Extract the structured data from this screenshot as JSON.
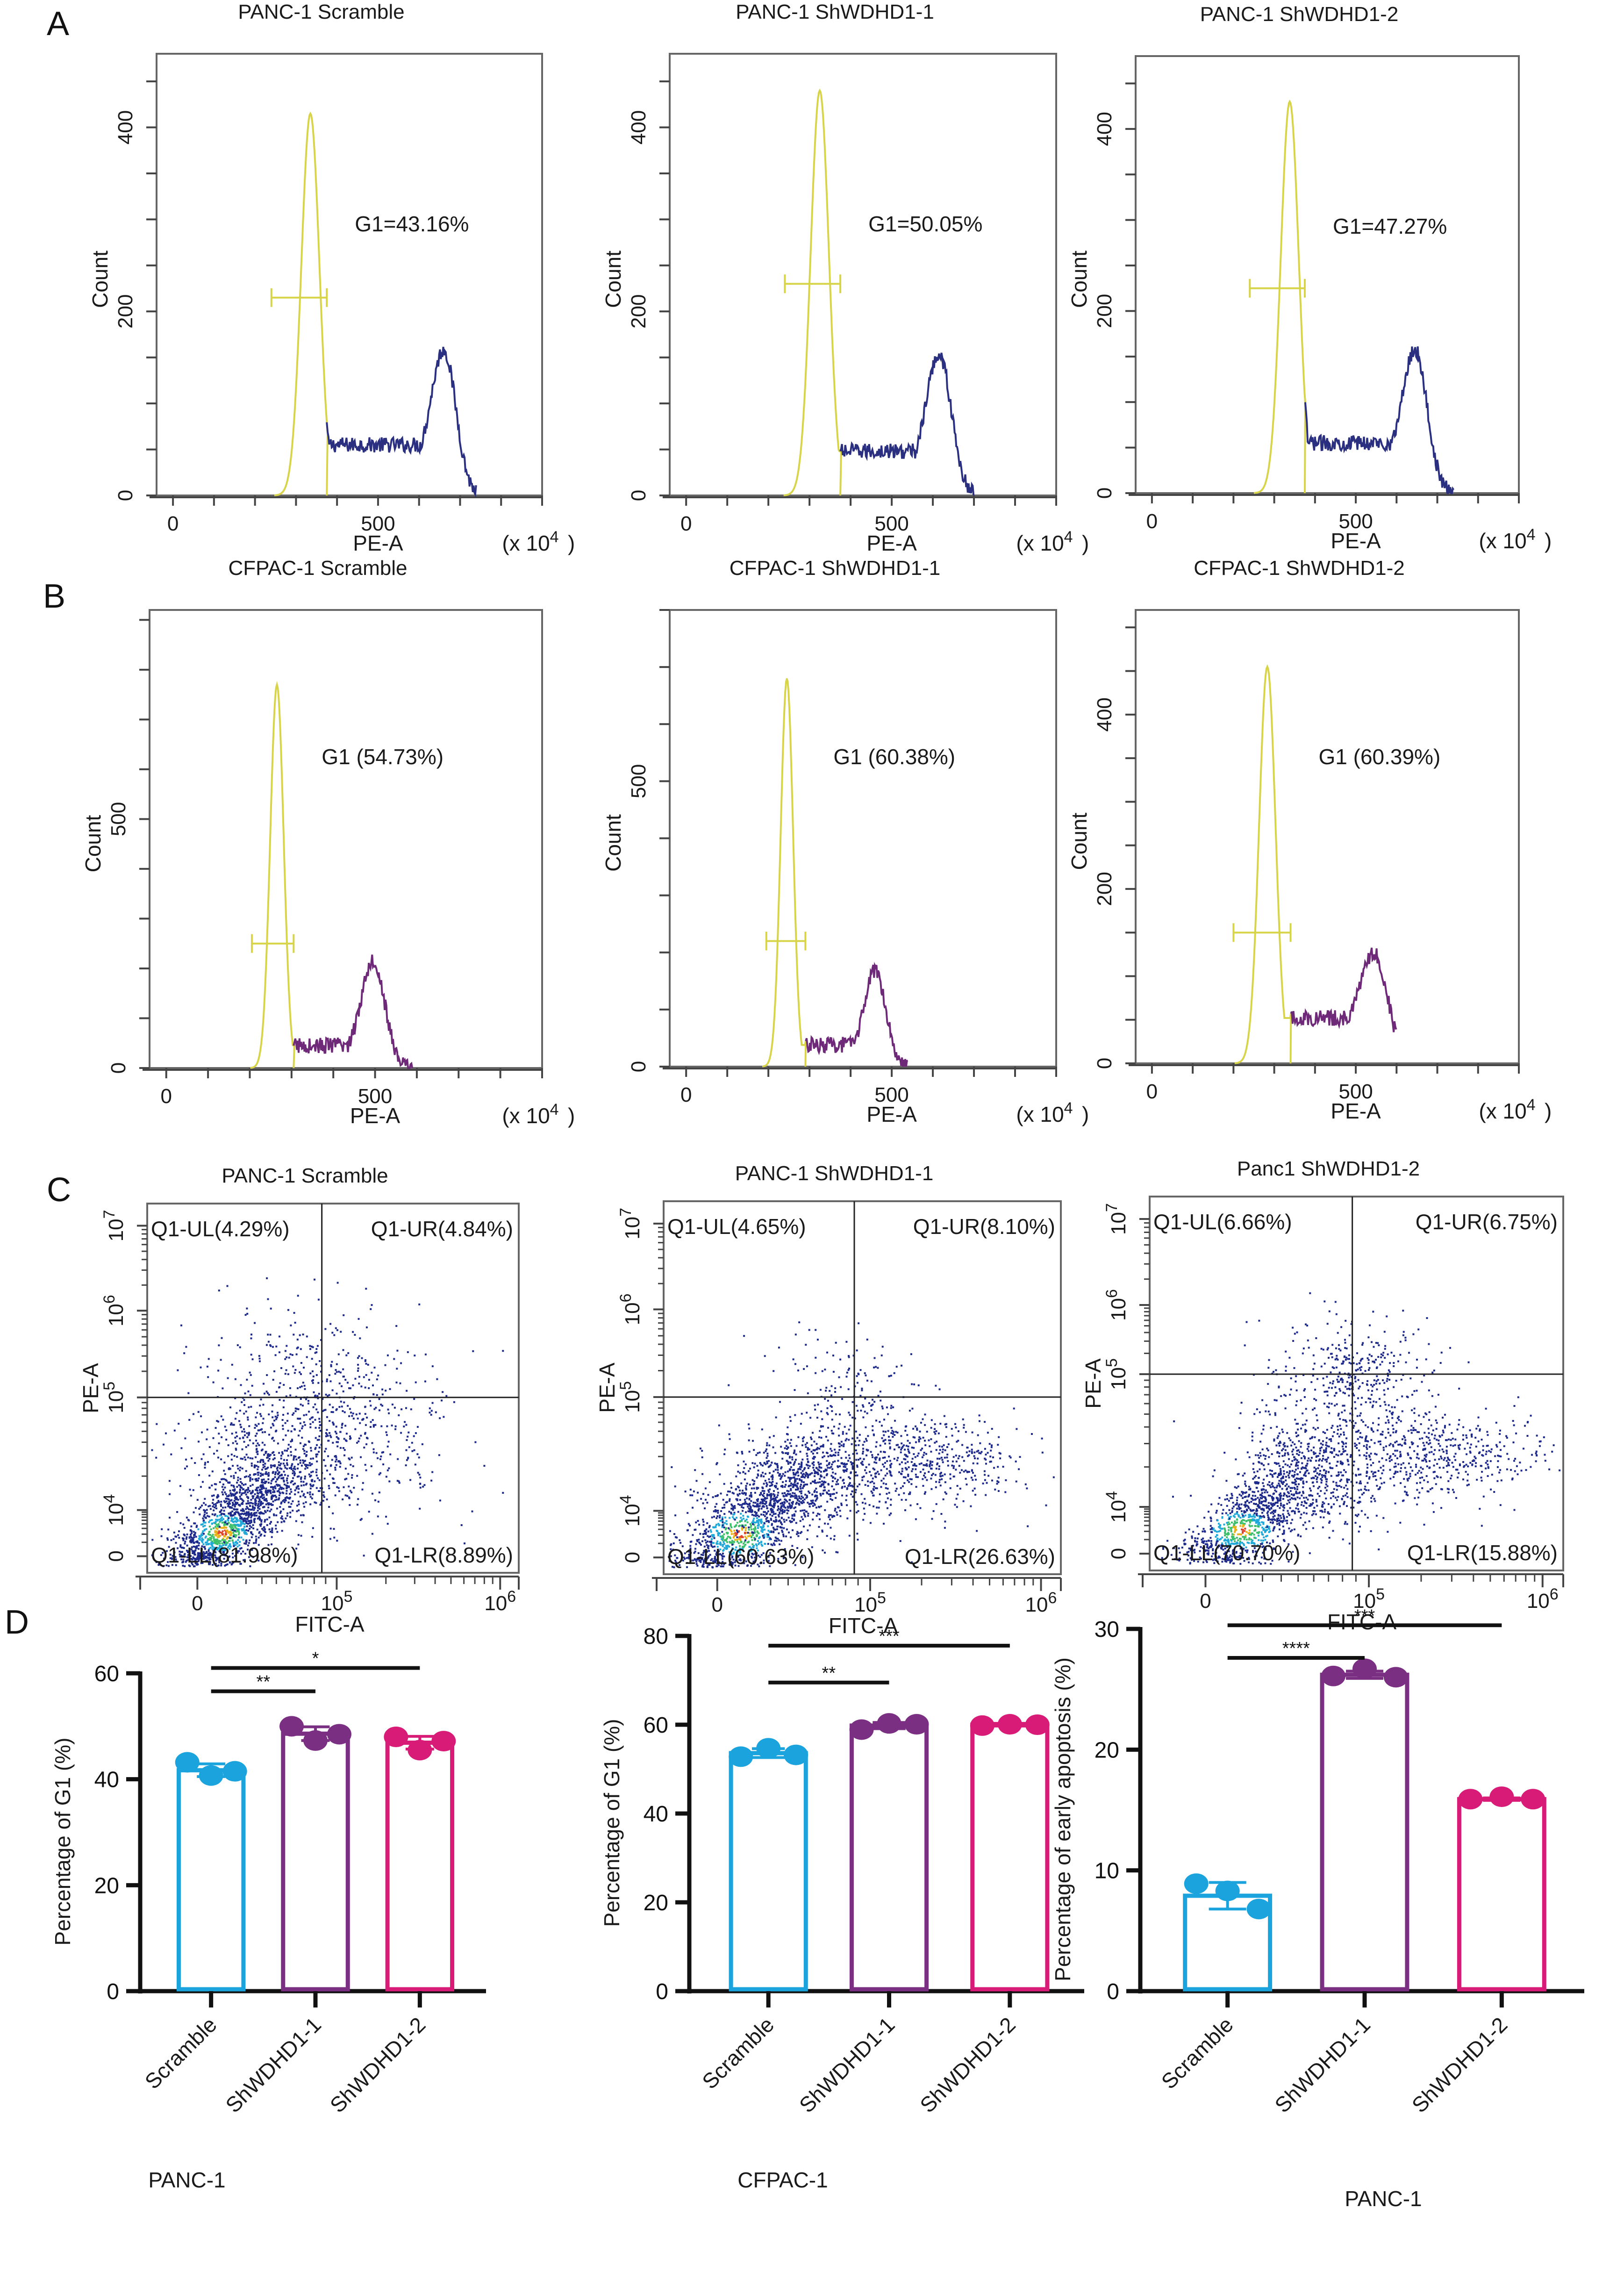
{
  "panel_letters": [
    "A",
    "B",
    "C",
    "D"
  ],
  "colors": {
    "g1_gate": "#d8d44a",
    "histA_rest": "#2a2f80",
    "histB_rest": "#6e2a78",
    "scatter_base": "#1d2a8c",
    "scramble": "#1aa3dc",
    "sh1": "#7b2f82",
    "sh2": "#d81b77",
    "frame": "#666666"
  },
  "chart_data": [
    {
      "id": "A1",
      "type": "area",
      "panel": "A",
      "title": "PANC-1 Scramble",
      "xlabel": "PE-A",
      "x_unit": "(x 10^4)",
      "ylabel": "Count",
      "xlim": [
        -40,
        900
      ],
      "ylim": [
        0,
        480
      ],
      "xticks": [
        0,
        500
      ],
      "yticks": [
        0,
        200,
        400
      ],
      "gate_label": "G1=43.16%",
      "gate_range": [
        240,
        375
      ],
      "gate_y": 215,
      "g1_peak": {
        "x": 335,
        "y": 415,
        "sd": 22
      },
      "g2_peak": {
        "x": 660,
        "y": 125,
        "sd": 30
      },
      "s_plateau": 55,
      "tail_end": 740
    },
    {
      "id": "A2",
      "type": "area",
      "panel": "A",
      "title": "PANC-1 ShWDHD1-1",
      "xlabel": "PE-A",
      "x_unit": "(x 10^4)",
      "ylabel": "Count",
      "xlim": [
        -40,
        900
      ],
      "ylim": [
        0,
        480
      ],
      "xticks": [
        0,
        500
      ],
      "yticks": [
        0,
        200,
        400
      ],
      "gate_label": "G1=50.05%",
      "gate_range": [
        240,
        375
      ],
      "gate_y": 230,
      "g1_peak": {
        "x": 325,
        "y": 440,
        "sd": 22
      },
      "g2_peak": {
        "x": 615,
        "y": 125,
        "sd": 30
      },
      "s_plateau": 48,
      "tail_end": 700
    },
    {
      "id": "A3",
      "type": "area",
      "panel": "A",
      "title": "PANC-1 ShWDHD1-2",
      "xlabel": "PE-A",
      "x_unit": "(x 10^4)",
      "ylabel": "Count",
      "xlim": [
        -40,
        900
      ],
      "ylim": [
        0,
        480
      ],
      "xticks": [
        0,
        500
      ],
      "yticks": [
        0,
        200,
        400
      ],
      "gate_label": "G1=47.27%",
      "gate_range": [
        240,
        375
      ],
      "gate_y": 225,
      "g1_peak": {
        "x": 338,
        "y": 430,
        "sd": 22
      },
      "g2_peak": {
        "x": 645,
        "y": 125,
        "sd": 30
      },
      "s_plateau": 55,
      "tail_end": 740
    },
    {
      "id": "B1",
      "type": "area",
      "panel": "B",
      "title": "CFPAC-1 Scramble",
      "xlabel": "PE-A",
      "x_unit": "(x 10^4)",
      "ylabel": "Count",
      "xlim": [
        -40,
        900
      ],
      "ylim": [
        0,
        920
      ],
      "xticks": [
        0,
        500
      ],
      "yticks": [
        0,
        500
      ],
      "gate_label": "G1 (54.73%)",
      "gate_range": [
        205,
        305
      ],
      "gate_y": 250,
      "g1_peak": {
        "x": 265,
        "y": 770,
        "sd": 16
      },
      "g2_peak": {
        "x": 495,
        "y": 190,
        "sd": 28
      },
      "s_plateau": 45,
      "tail_end": 590
    },
    {
      "id": "B2",
      "type": "area",
      "panel": "B",
      "title": "CFPAC-1 ShWDHD1-1",
      "xlabel": "PE-A",
      "x_unit": "(x 10^4)",
      "ylabel": "Count",
      "xlim": [
        -40,
        900
      ],
      "ylim": [
        0,
        800
      ],
      "xticks": [
        0,
        500
      ],
      "yticks": [
        0,
        500
      ],
      "gate_label": "G1 (60.38%)",
      "gate_range": [
        195,
        290
      ],
      "gate_y": 220,
      "g1_peak": {
        "x": 245,
        "y": 680,
        "sd": 15
      },
      "g2_peak": {
        "x": 460,
        "y": 145,
        "sd": 26
      },
      "s_plateau": 38,
      "tail_end": 540
    },
    {
      "id": "B3",
      "type": "area",
      "panel": "B",
      "title": "CFPAC-1 ShWDHD1-2",
      "xlabel": "PE-A",
      "x_unit": "(x 10^4)",
      "ylabel": "Count",
      "xlim": [
        -40,
        900
      ],
      "ylim": [
        0,
        520
      ],
      "xticks": [
        0,
        500
      ],
      "yticks": [
        0,
        200,
        400
      ],
      "gate_label": "G1 (60.39%)",
      "gate_range": [
        200,
        340
      ],
      "gate_y": 150,
      "g1_peak": {
        "x": 283,
        "y": 455,
        "sd": 20
      },
      "g2_peak": {
        "x": 545,
        "y": 95,
        "sd": 35
      },
      "s_plateau": 52,
      "tail_end": 600
    },
    {
      "id": "C1",
      "type": "scatter",
      "panel": "C",
      "title": "PANC-1 Scramble",
      "xlabel": "FITC-A",
      "ylabel": "PE-A",
      "x_scale": "biexponential",
      "y_scale": "biexponential",
      "xticks": [
        "0",
        "10^5",
        "10^6"
      ],
      "yticks": [
        "0",
        "10^4",
        "10^5",
        "10^6",
        "10^7"
      ],
      "quadrant_gate": {
        "x": "≈7×10^4",
        "y": "10^5"
      },
      "quadrants": {
        "UL": "Q1-UL(4.29%)",
        "UR": "Q1-UR(4.84%)",
        "LL": "Q1-LL(81.98%)",
        "LR": "Q1-LR(8.89%)"
      },
      "quadrant_pct": {
        "UL": 4.29,
        "UR": 4.84,
        "LL": 81.98,
        "LR": 8.89
      }
    },
    {
      "id": "C2",
      "type": "scatter",
      "panel": "C",
      "title": "PANC-1 ShWDHD1-1",
      "xlabel": "FITC-A",
      "ylabel": "PE-A",
      "x_scale": "biexponential",
      "y_scale": "biexponential",
      "xticks": [
        "0",
        "10^5",
        "10^6"
      ],
      "yticks": [
        "0",
        "10^4",
        "10^5",
        "10^6",
        "10^7"
      ],
      "quadrant_gate": {
        "x": "≈8×10^4",
        "y": "10^5"
      },
      "quadrants": {
        "UL": "Q1-UL(4.65%)",
        "UR": "Q1-UR(8.10%)",
        "LL": "Q1-LL(60.63%)",
        "LR": "Q1-LR(26.63%)"
      },
      "quadrant_pct": {
        "UL": 4.65,
        "UR": 8.1,
        "LL": 60.63,
        "LR": 26.63
      }
    },
    {
      "id": "C3",
      "type": "scatter",
      "panel": "C",
      "title": "Panc1 ShWDHD1-2",
      "xlabel": "FITC-A",
      "ylabel": "PE-A",
      "x_scale": "biexponential",
      "y_scale": "biexponential",
      "xticks": [
        "0",
        "10^5",
        "10^6"
      ],
      "yticks": [
        "0",
        "10^4",
        "10^5",
        "10^6",
        "10^7"
      ],
      "quadrant_gate": {
        "x": "≈8×10^4",
        "y": "10^5"
      },
      "quadrants": {
        "UL": "Q1-UL(6.66%)",
        "UR": "Q1-UR(6.75%)",
        "LL": "Q1-LL(70.70%)",
        "LR": "Q1-LR(15.88%)"
      },
      "quadrant_pct": {
        "UL": 6.66,
        "UR": 6.75,
        "LL": 70.7,
        "LR": 15.88
      }
    },
    {
      "id": "D1",
      "type": "bar",
      "panel": "D",
      "title": "",
      "xlabel": "PANC-1",
      "ylabel": "Percentage of G1 (%)",
      "ylim": [
        0,
        60
      ],
      "yticks": [
        0,
        20,
        40,
        60
      ],
      "categories": [
        "Scramble",
        "ShWDHD1-1",
        "ShWDHD1-2"
      ],
      "means": [
        41.7,
        48.6,
        46.9
      ],
      "sd": [
        1.2,
        1.3,
        1.2
      ],
      "points": [
        [
          43.2,
          40.7,
          41.5
        ],
        [
          50.0,
          47.3,
          48.5
        ],
        [
          48.0,
          45.5,
          47.2
        ]
      ],
      "significance": [
        {
          "from": 0,
          "to": 1,
          "label": "**",
          "y": 56.6
        },
        {
          "from": 0,
          "to": 2,
          "label": "*",
          "y": 61.0
        }
      ]
    },
    {
      "id": "D2",
      "type": "bar",
      "panel": "D",
      "title": "",
      "xlabel": "CFPAC-1",
      "ylabel": "Percentage of G1 (%)",
      "ylim": [
        0,
        80
      ],
      "yticks": [
        0,
        20,
        40,
        60,
        80
      ],
      "categories": [
        "Scramble",
        "ShWDHD1-1",
        "ShWDHD1-2"
      ],
      "means": [
        53.6,
        59.8,
        60.0
      ],
      "sd": [
        1.0,
        0.7,
        0.3
      ],
      "points": [
        [
          52.8,
          54.7,
          53.2
        ],
        [
          58.9,
          60.3,
          60.1
        ],
        [
          59.8,
          60.1,
          60.0
        ]
      ],
      "significance": [
        {
          "from": 0,
          "to": 1,
          "label": "**",
          "y": 69.5
        },
        {
          "from": 0,
          "to": 2,
          "label": "***",
          "y": 77.8
        }
      ]
    },
    {
      "id": "D3",
      "type": "bar",
      "panel": "D",
      "title": "",
      "xlabel": "PANC-1",
      "ylabel": "Percentage of early apoptosis (%)",
      "ylim": [
        0,
        30
      ],
      "yticks": [
        0,
        10,
        20,
        30
      ],
      "categories": [
        "Scramble",
        "ShWDHD1-1",
        "ShWDHD1-2"
      ],
      "means": [
        7.9,
        26.2,
        15.9
      ],
      "sd": [
        1.1,
        0.3,
        0.1
      ],
      "points": [
        [
          8.9,
          8.3,
          6.8
        ],
        [
          26.1,
          26.7,
          26.0
        ],
        [
          15.9,
          16.1,
          15.9
        ]
      ],
      "significance": [
        {
          "from": 0,
          "to": 1,
          "label": "****",
          "y": 27.6
        },
        {
          "from": 0,
          "to": 2,
          "label": "***",
          "y": 30.3
        }
      ]
    }
  ]
}
